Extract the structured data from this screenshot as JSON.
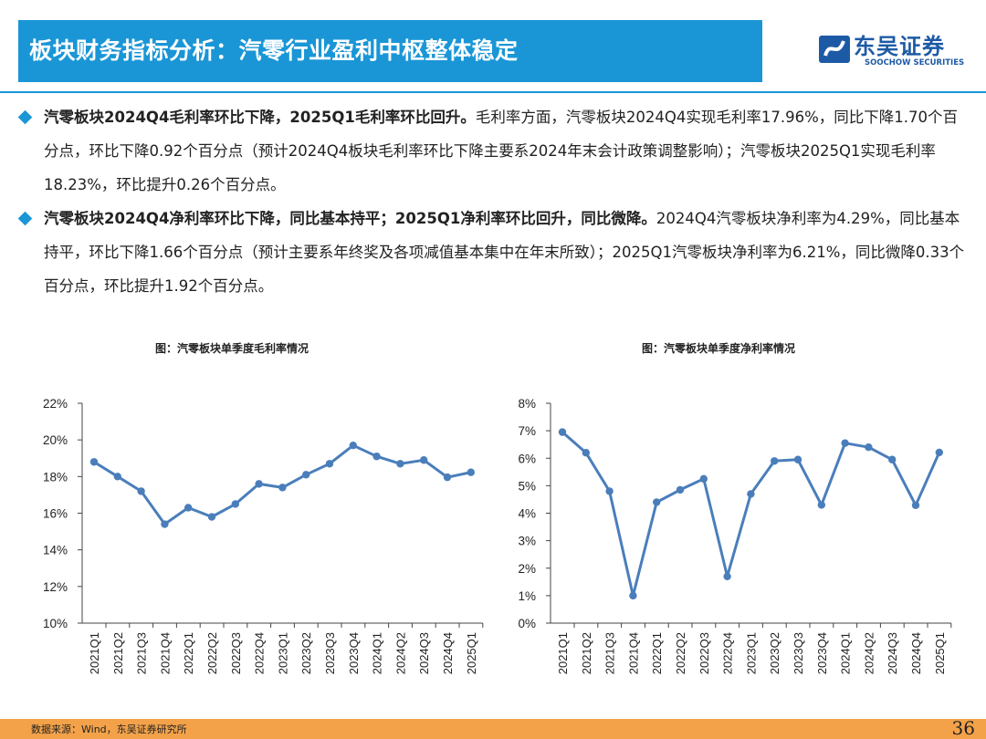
{
  "header": {
    "title": "板块财务指标分析：汽零行业盈利中枢整体稳定",
    "logo_cn": "东吴证券",
    "logo_en": "SOOCHOW SECURITIES"
  },
  "bullets": [
    {
      "bold": "汽零板块2024Q4毛利率环比下降，2025Q1毛利率环比回升。",
      "text": "毛利率方面，汽零板块2024Q4实现毛利率17.96%，同比下降1.70个百分点，环比下降0.92个百分点（预计2024Q4板块毛利率环比下降主要系2024年末会计政策调整影响）；汽零板块2025Q1实现毛利率18.23%，环比提升0.26个百分点。"
    },
    {
      "bold": "汽零板块2024Q4净利率环比下降，同比基本持平；2025Q1净利率环比回升，同比微降。",
      "text": "2024Q4汽零板块净利率为4.29%，同比基本持平，环比下降1.66个百分点（预计主要系年终奖及各项减值基本集中在年末所致）；2025Q1汽零板块净利率为6.21%，同比微降0.33个百分点，环比提升1.92个百分点。"
    }
  ],
  "chart_data": [
    {
      "type": "line",
      "title": "图：汽零板块单季度毛利率情况",
      "categories": [
        "2021Q1",
        "2021Q2",
        "2021Q3",
        "2021Q4",
        "2022Q1",
        "2022Q2",
        "2022Q3",
        "2022Q4",
        "2023Q1",
        "2023Q2",
        "2023Q3",
        "2023Q4",
        "2024Q1",
        "2024Q2",
        "2024Q3",
        "2024Q4",
        "2025Q1"
      ],
      "values": [
        18.8,
        18.0,
        17.2,
        15.4,
        16.3,
        15.8,
        16.5,
        17.6,
        17.4,
        18.1,
        18.7,
        19.7,
        19.1,
        18.7,
        18.9,
        17.96,
        18.23
      ],
      "ylim": [
        10,
        22
      ],
      "yticks": [
        "10%",
        "12%",
        "14%",
        "16%",
        "18%",
        "20%",
        "22%"
      ],
      "line_color": "#4a7ebb",
      "grid": false
    },
    {
      "type": "line",
      "title": "图：汽零板块单季度净利率情况",
      "categories": [
        "2021Q1",
        "2021Q2",
        "2021Q3",
        "2021Q4",
        "2022Q1",
        "2022Q2",
        "2022Q3",
        "2022Q4",
        "2023Q1",
        "2023Q2",
        "2023Q3",
        "2023Q4",
        "2024Q1",
        "2024Q2",
        "2024Q3",
        "2024Q4",
        "2025Q1"
      ],
      "values": [
        6.95,
        6.2,
        4.8,
        1.0,
        4.4,
        4.85,
        5.25,
        1.7,
        4.7,
        5.9,
        5.95,
        4.3,
        6.55,
        6.4,
        5.95,
        4.29,
        6.21
      ],
      "ylim": [
        0,
        8
      ],
      "yticks": [
        "0%",
        "1%",
        "2%",
        "3%",
        "4%",
        "5%",
        "6%",
        "7%",
        "8%"
      ],
      "line_color": "#4a7ebb",
      "grid": false
    }
  ],
  "footer": {
    "source": "数据来源：Wind，东吴证券研究所",
    "page": "36"
  }
}
